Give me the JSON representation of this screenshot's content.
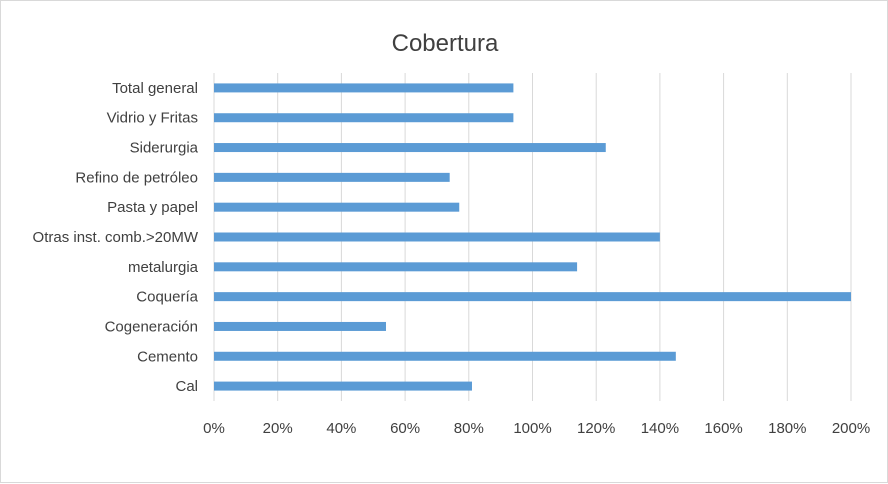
{
  "chart_data": {
    "type": "bar",
    "orientation": "horizontal",
    "title": "Cobertura",
    "categories": [
      "Total general",
      "Vidrio y Fritas",
      "Siderurgia",
      "Refino de petróleo",
      "Pasta y papel",
      "Otras inst. comb.>20MW",
      "metalurgia",
      "Coquería",
      "Cogeneración",
      "Cemento",
      "Cal"
    ],
    "values": [
      0.94,
      0.94,
      1.23,
      0.74,
      0.77,
      1.4,
      1.14,
      2.0,
      0.54,
      1.45,
      0.81
    ],
    "xlim": [
      0,
      2.0
    ],
    "xticks": [
      "0%",
      "20%",
      "40%",
      "60%",
      "80%",
      "100%",
      "120%",
      "140%",
      "160%",
      "180%",
      "200%"
    ],
    "grid": true,
    "legend": "none",
    "bar_color": "#5b9bd5"
  }
}
